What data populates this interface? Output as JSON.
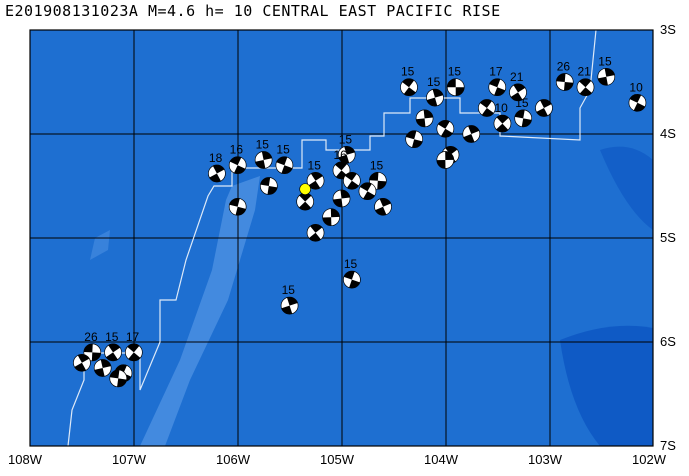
{
  "map": {
    "title": "E201908131023A M=4.6 h= 10 CENTRAL EAST PACIFIC RISE",
    "lon_labels": [
      "108W",
      "107W",
      "106W",
      "105W",
      "104W",
      "103W",
      "102W"
    ],
    "lat_labels": [
      "3S",
      "4S",
      "5S",
      "6S",
      "7S"
    ],
    "extent": {
      "lon_min": -108,
      "lon_max": -102,
      "lat_min": -7,
      "lat_max": -3
    },
    "colors": {
      "ocean": "#1e6fd1",
      "shallow": "#5296e6",
      "deep": "#0b55c2",
      "grid": "#000000",
      "plate_boundary": "#ffffff",
      "epicenter": "#ffff00",
      "beachball_compressional": "#000000",
      "beachball_dilatational": "#ffffff"
    },
    "epicenter": {
      "lon": -105.35,
      "lat": -4.53
    },
    "event_label_value": "15",
    "events": [
      {
        "lon": -103.9,
        "lat": -3.55,
        "label": "15"
      },
      {
        "lon": -104.35,
        "lat": -3.55,
        "label": "15"
      },
      {
        "lon": -104.1,
        "lat": -3.65,
        "label": "15"
      },
      {
        "lon": -103.5,
        "lat": -3.55,
        "label": "17"
      },
      {
        "lon": -103.3,
        "lat": -3.6,
        "label": "21"
      },
      {
        "lon": -102.85,
        "lat": -3.5,
        "label": "26"
      },
      {
        "lon": -102.65,
        "lat": -3.55,
        "label": "21"
      },
      {
        "lon": -102.45,
        "lat": -3.45,
        "label": "15"
      },
      {
        "lon": -102.15,
        "lat": -3.7,
        "label": "10"
      },
      {
        "lon": -103.05,
        "lat": -3.75,
        "label": ""
      },
      {
        "lon": -103.25,
        "lat": -3.85,
        "label": "15"
      },
      {
        "lon": -103.45,
        "lat": -3.9,
        "label": "10"
      },
      {
        "lon": -104.2,
        "lat": -3.85,
        "label": ""
      },
      {
        "lon": -104.0,
        "lat": -3.95,
        "label": ""
      },
      {
        "lon": -103.75,
        "lat": -4.0,
        "label": ""
      },
      {
        "lon": -104.3,
        "lat": -4.05,
        "label": ""
      },
      {
        "lon": -103.95,
        "lat": -4.2,
        "label": ""
      },
      {
        "lon": -104.0,
        "lat": -4.25,
        "label": ""
      },
      {
        "lon": -103.6,
        "lat": -3.75,
        "label": ""
      },
      {
        "lon": -104.95,
        "lat": -4.2,
        "label": "15"
      },
      {
        "lon": -105.55,
        "lat": -4.3,
        "label": "15"
      },
      {
        "lon": -105.25,
        "lat": -4.45,
        "label": "15"
      },
      {
        "lon": -104.65,
        "lat": -4.45,
        "label": "15"
      },
      {
        "lon": -105.0,
        "lat": -4.35,
        "label": "16"
      },
      {
        "lon": -105.75,
        "lat": -4.25,
        "label": "15"
      },
      {
        "lon": -106.0,
        "lat": -4.3,
        "label": "16"
      },
      {
        "lon": -106.2,
        "lat": -4.38,
        "label": "18"
      },
      {
        "lon": -105.7,
        "lat": -4.5,
        "label": ""
      },
      {
        "lon": -105.35,
        "lat": -4.65,
        "label": ""
      },
      {
        "lon": -105.0,
        "lat": -4.62,
        "label": ""
      },
      {
        "lon": -104.75,
        "lat": -4.55,
        "label": ""
      },
      {
        "lon": -104.6,
        "lat": -4.7,
        "label": ""
      },
      {
        "lon": -106.0,
        "lat": -4.7,
        "label": ""
      },
      {
        "lon": -105.25,
        "lat": -4.95,
        "label": ""
      },
      {
        "lon": -105.1,
        "lat": -4.8,
        "label": ""
      },
      {
        "lon": -104.9,
        "lat": -4.45,
        "label": ""
      },
      {
        "lon": -105.5,
        "lat": -5.65,
        "label": "15"
      },
      {
        "lon": -104.9,
        "lat": -5.4,
        "label": "15"
      },
      {
        "lon": -107.2,
        "lat": -6.1,
        "label": "15"
      },
      {
        "lon": -107.4,
        "lat": -6.1,
        "label": "26"
      },
      {
        "lon": -107.0,
        "lat": -6.1,
        "label": "17"
      },
      {
        "lon": -107.3,
        "lat": -6.25,
        "label": ""
      },
      {
        "lon": -107.1,
        "lat": -6.3,
        "label": ""
      },
      {
        "lon": -107.5,
        "lat": -6.2,
        "label": ""
      },
      {
        "lon": -107.15,
        "lat": -6.35,
        "label": ""
      }
    ]
  }
}
